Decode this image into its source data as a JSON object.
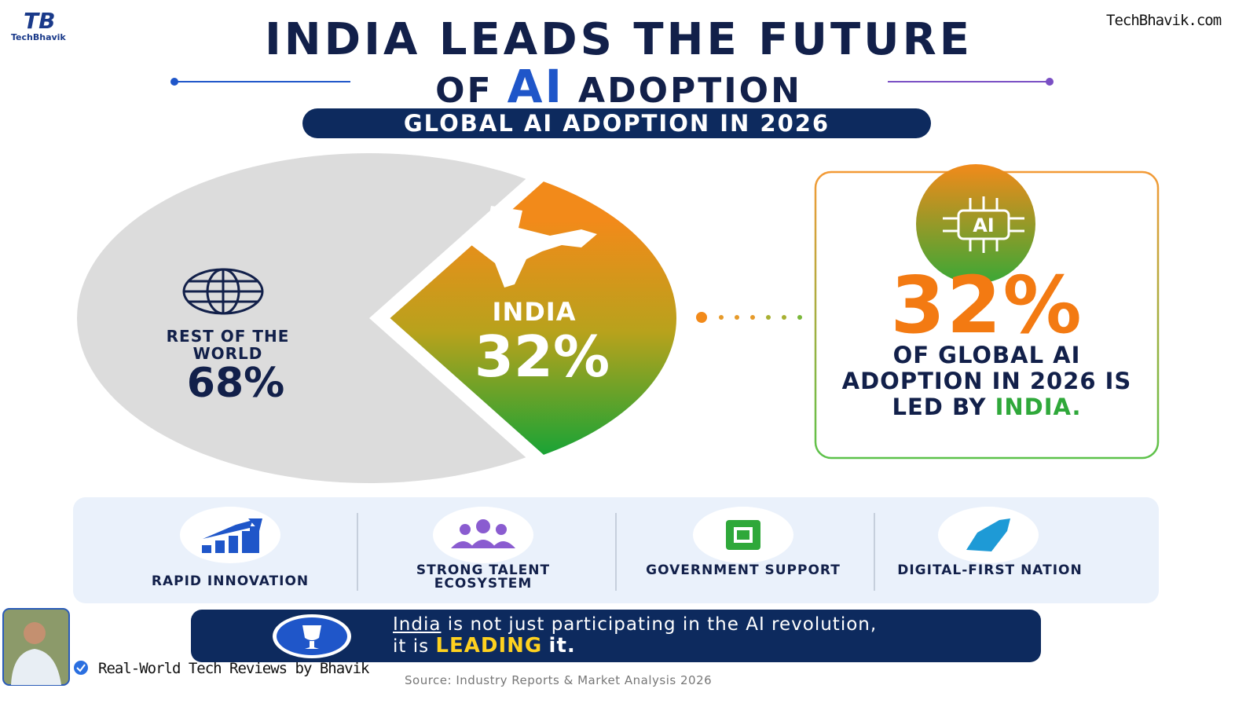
{
  "header": {
    "logo": "TechBhavik",
    "site": "TechBhavik.com",
    "title_line1": "INDIA LEADS THE FUTURE",
    "title_of": "OF",
    "title_ai": "AI",
    "title_adoption": "ADOPTION"
  },
  "chart_data": {
    "type": "pie",
    "title": "GLOBAL AI ADOPTION IN 2026",
    "categories": [
      "REST OF THE WORLD",
      "INDIA"
    ],
    "values": [
      68,
      32
    ],
    "value_labels": [
      "68%",
      "32%"
    ],
    "colors": [
      "#dcdcdc",
      "#f28a1a"
    ]
  },
  "callout": {
    "value_label": "32%",
    "text": "OF GLOBAL AI ADOPTION IN 2026 IS LED BY",
    "highlight": "INDIA.",
    "icon_label": "AI"
  },
  "features": [
    "RAPID INNOVATION",
    "STRONG TALENT ECOSYSTEM",
    "GOVERNMENT SUPPORT",
    "DIGITAL-FIRST NATION"
  ],
  "banner": {
    "link": "India",
    "text1": "is not just participating in the AI revolution,",
    "text2": "it is",
    "highlight": "LEADING",
    "text3": "it."
  },
  "source": "Source: Industry Reports & Market Analysis 2026",
  "presenter": "Real-World Tech Reviews by Bhavik"
}
